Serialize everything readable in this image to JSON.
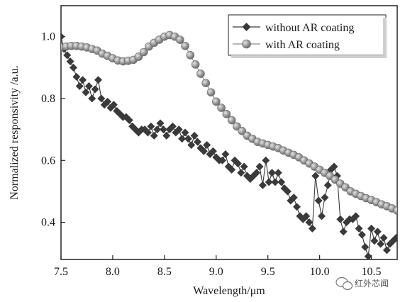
{
  "chart_data": {
    "type": "line",
    "xlabel": "Wavelength/μm",
    "ylabel": "Normalized responsivity /a.u.",
    "xlim": [
      7.5,
      10.75
    ],
    "ylim": [
      0.28,
      1.1
    ],
    "x_ticks": [
      "7.5",
      "8.0",
      "8.5",
      "9.0",
      "9.5",
      "10.0",
      "10.5"
    ],
    "y_ticks": [
      "0.4",
      "0.6",
      "0.8",
      "1.0"
    ],
    "grid": false,
    "legend_position": "top-right",
    "series": [
      {
        "name": "without AR coating",
        "marker": "diamond",
        "color": "#3a3a3a",
        "x": [
          7.5,
          7.53,
          7.56,
          7.59,
          7.62,
          7.65,
          7.68,
          7.71,
          7.74,
          7.77,
          7.8,
          7.83,
          7.86,
          7.89,
          7.92,
          7.95,
          7.98,
          8.01,
          8.04,
          8.07,
          8.1,
          8.13,
          8.16,
          8.19,
          8.22,
          8.25,
          8.28,
          8.31,
          8.34,
          8.37,
          8.4,
          8.43,
          8.46,
          8.49,
          8.52,
          8.55,
          8.58,
          8.61,
          8.64,
          8.67,
          8.7,
          8.73,
          8.76,
          8.79,
          8.82,
          8.85,
          8.88,
          8.91,
          8.94,
          8.97,
          9.0,
          9.03,
          9.06,
          9.09,
          9.12,
          9.15,
          9.18,
          9.21,
          9.24,
          9.27,
          9.3,
          9.33,
          9.36,
          9.39,
          9.42,
          9.45,
          9.48,
          9.51,
          9.54,
          9.57,
          9.6,
          9.63,
          9.66,
          9.69,
          9.72,
          9.75,
          9.78,
          9.81,
          9.84,
          9.87,
          9.9,
          9.93,
          9.96,
          9.99,
          10.02,
          10.05,
          10.08,
          10.11,
          10.14,
          10.17,
          10.2,
          10.23,
          10.26,
          10.29,
          10.32,
          10.35,
          10.38,
          10.41,
          10.44,
          10.47,
          10.5,
          10.53,
          10.56,
          10.59,
          10.62,
          10.65,
          10.68,
          10.71,
          10.74
        ],
        "y": [
          1.0,
          0.96,
          0.94,
          0.92,
          0.9,
          0.87,
          0.84,
          0.86,
          0.82,
          0.84,
          0.8,
          0.83,
          0.86,
          0.8,
          0.78,
          0.79,
          0.77,
          0.78,
          0.76,
          0.75,
          0.74,
          0.74,
          0.73,
          0.71,
          0.7,
          0.69,
          0.7,
          0.7,
          0.69,
          0.71,
          0.68,
          0.7,
          0.72,
          0.7,
          0.68,
          0.7,
          0.71,
          0.69,
          0.7,
          0.67,
          0.69,
          0.67,
          0.65,
          0.68,
          0.66,
          0.64,
          0.63,
          0.65,
          0.62,
          0.63,
          0.61,
          0.6,
          0.6,
          0.62,
          0.58,
          0.57,
          0.6,
          0.59,
          0.56,
          0.58,
          0.55,
          0.54,
          0.55,
          0.56,
          0.58,
          0.52,
          0.6,
          0.53,
          0.56,
          0.53,
          0.56,
          0.53,
          0.51,
          0.5,
          0.47,
          0.48,
          0.45,
          0.42,
          0.41,
          0.42,
          0.4,
          0.38,
          0.55,
          0.47,
          0.42,
          0.48,
          0.52,
          0.57,
          0.58,
          0.55,
          0.41,
          0.37,
          0.4,
          0.41,
          0.41,
          0.42,
          0.38,
          0.36,
          0.32,
          0.29,
          0.38,
          0.34,
          0.37,
          0.33,
          0.35,
          0.31,
          0.33,
          0.34,
          0.35
        ]
      },
      {
        "name": "with AR coating",
        "marker": "circle",
        "color": "#8a8a8a",
        "x": [
          7.5,
          7.55,
          7.6,
          7.65,
          7.7,
          7.75,
          7.8,
          7.85,
          7.9,
          7.95,
          8.0,
          8.05,
          8.1,
          8.15,
          8.2,
          8.25,
          8.3,
          8.35,
          8.4,
          8.45,
          8.5,
          8.55,
          8.6,
          8.65,
          8.7,
          8.75,
          8.8,
          8.85,
          8.9,
          8.95,
          9.0,
          9.05,
          9.1,
          9.15,
          9.2,
          9.25,
          9.3,
          9.35,
          9.4,
          9.45,
          9.5,
          9.55,
          9.6,
          9.65,
          9.7,
          9.75,
          9.8,
          9.85,
          9.9,
          9.95,
          10.0,
          10.05,
          10.1,
          10.15,
          10.2,
          10.25,
          10.3,
          10.35,
          10.4,
          10.45,
          10.5,
          10.55,
          10.6,
          10.65,
          10.7,
          10.75
        ],
        "y": [
          0.965,
          0.968,
          0.97,
          0.97,
          0.968,
          0.965,
          0.96,
          0.955,
          0.945,
          0.938,
          0.93,
          0.923,
          0.92,
          0.922,
          0.925,
          0.935,
          0.95,
          0.968,
          0.98,
          0.99,
          1.0,
          1.005,
          1.0,
          0.99,
          0.97,
          0.94,
          0.91,
          0.88,
          0.85,
          0.82,
          0.79,
          0.77,
          0.75,
          0.73,
          0.71,
          0.695,
          0.68,
          0.67,
          0.66,
          0.655,
          0.65,
          0.645,
          0.64,
          0.632,
          0.625,
          0.618,
          0.61,
          0.6,
          0.59,
          0.58,
          0.57,
          0.56,
          0.55,
          0.538,
          0.525,
          0.513,
          0.5,
          0.492,
          0.485,
          0.478,
          0.472,
          0.465,
          0.458,
          0.452,
          0.445,
          0.438
        ]
      }
    ]
  },
  "watermark": {
    "text": "红外芯闻",
    "icon": "wechat-icon"
  }
}
